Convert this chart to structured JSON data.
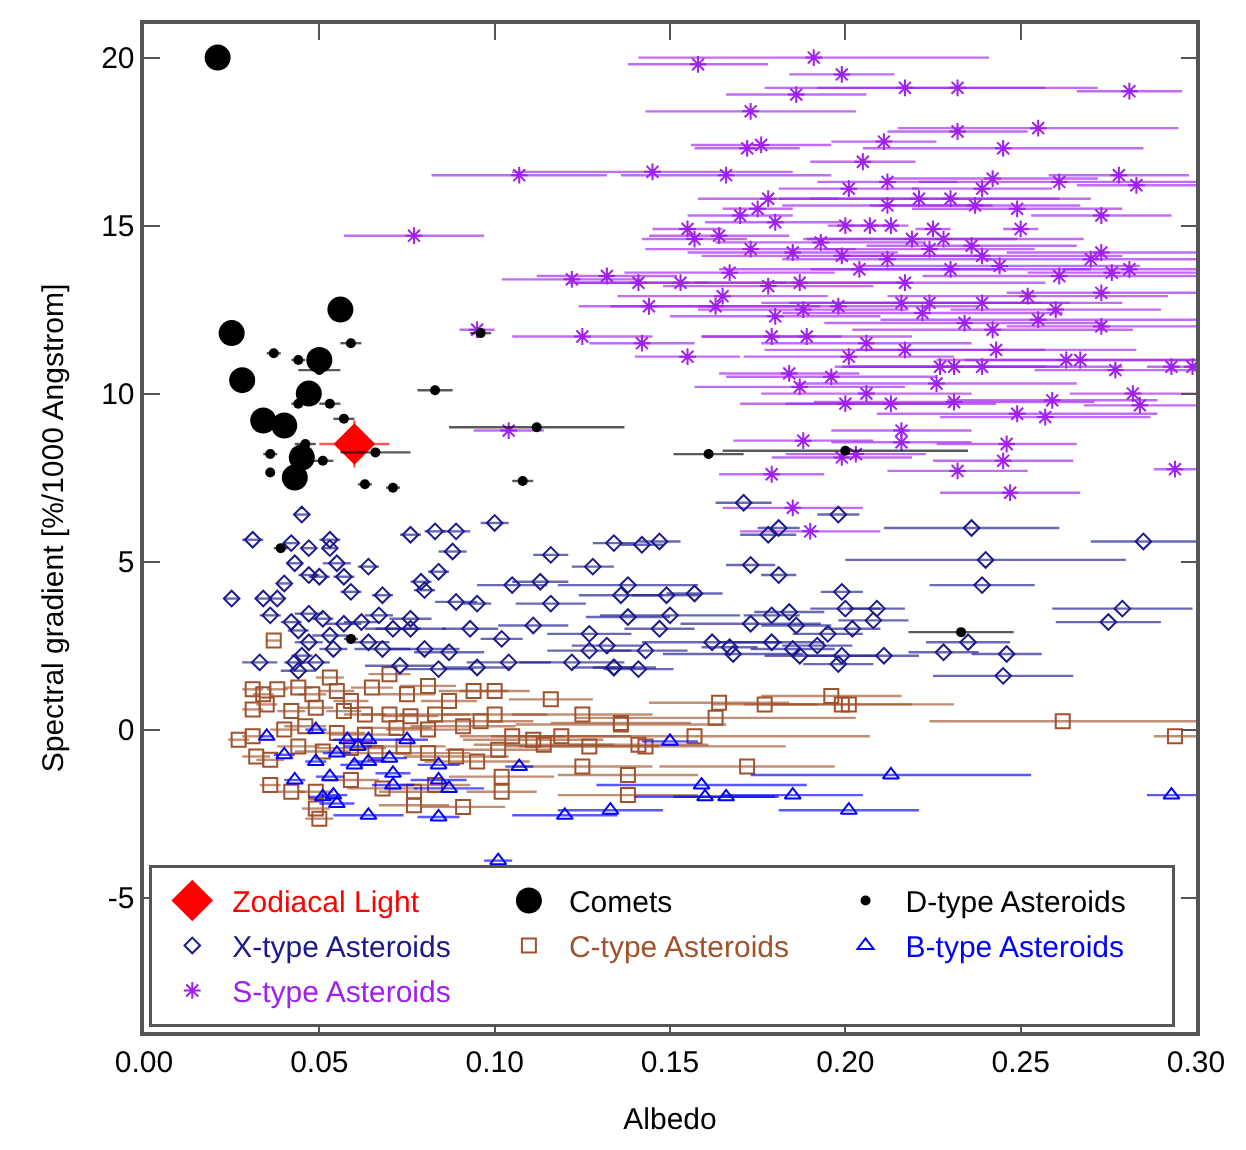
{
  "chart_data": {
    "type": "scatter",
    "xlabel": "Albedo",
    "ylabel": "Spectral gradient [%/1000 Angstrom]",
    "xlim": [
      0,
      0.3
    ],
    "ylim": [
      -9,
      21
    ],
    "xticks": [
      {
        "value": 0,
        "label": "0.00"
      },
      {
        "value": 0.05,
        "label": "0.05"
      },
      {
        "value": 0.1,
        "label": "0.10"
      },
      {
        "value": 0.15,
        "label": "0.15"
      },
      {
        "value": 0.2,
        "label": "0.20"
      },
      {
        "value": 0.25,
        "label": "0.25"
      },
      {
        "value": 0.3,
        "label": "0.30"
      }
    ],
    "yticks": [
      -5,
      0,
      5,
      10,
      15,
      20
    ],
    "grid": false,
    "legend": "bottom",
    "series": [
      {
        "name": "Zodiacal Light",
        "color": "#ff0000",
        "marker": "diamond",
        "x": [
          0.06
        ],
        "values": [
          8.5
        ],
        "xerrors": [
          0.01
        ],
        "errors": [
          0.7
        ]
      },
      {
        "name": "Comets",
        "color": "#000000",
        "marker": "circle",
        "x": [
          0.021,
          0.025,
          0.028,
          0.034,
          0.04,
          0.045,
          0.043,
          0.047,
          0.05,
          0.056
        ],
        "values": [
          20.0,
          11.8,
          10.4,
          9.2,
          9.05,
          8.1,
          7.5,
          10.0,
          11.0,
          12.5
        ]
      },
      {
        "name": "D-type Asteroids",
        "color": "#000000",
        "marker": "circle",
        "x": [
          0.037,
          0.044,
          0.044,
          0.053,
          0.05,
          0.059,
          0.036,
          0.036,
          0.046,
          0.051,
          0.057,
          0.066,
          0.063,
          0.071,
          0.083,
          0.096,
          0.112,
          0.108,
          0.039,
          0.059,
          0.161,
          0.2,
          0.233
        ],
        "values": [
          11.2,
          11.0,
          9.7,
          9.7,
          10.7,
          11.5,
          8.2,
          7.65,
          8.5,
          8.0,
          9.25,
          8.25,
          7.3,
          7.2,
          10.1,
          11.8,
          9.0,
          7.4,
          5.4,
          2.7,
          8.2,
          8.3,
          2.9
        ],
        "xerrors": [
          0.002,
          0.002,
          0.002,
          0.003,
          0.006,
          0.003,
          0.002,
          0.001,
          0.003,
          0.003,
          0.003,
          0.01,
          0.002,
          0.002,
          0.005,
          0.003,
          0.025,
          0.003,
          0.002,
          0.002,
          0.01,
          0.035,
          0.015
        ]
      },
      {
        "name": "X-type Asteroids",
        "color": "#1a1a8c",
        "marker": "diamond",
        "x": [
          0.031,
          0.045,
          0.025,
          0.034,
          0.038,
          0.042,
          0.047,
          0.053,
          0.053,
          0.04,
          0.043,
          0.047,
          0.05,
          0.055,
          0.057,
          0.064,
          0.059,
          0.068,
          0.076,
          0.083,
          0.089,
          0.088,
          0.1,
          0.084,
          0.079,
          0.08,
          0.089,
          0.095,
          0.105,
          0.113,
          0.116,
          0.116,
          0.128,
          0.134,
          0.036,
          0.042,
          0.047,
          0.051,
          0.057,
          0.062,
          0.067,
          0.076,
          0.071,
          0.076,
          0.093,
          0.102,
          0.111,
          0.127,
          0.044,
          0.047,
          0.053,
          0.054,
          0.045,
          0.043,
          0.049,
          0.064,
          0.068,
          0.08,
          0.087,
          0.073,
          0.084,
          0.095,
          0.104,
          0.122,
          0.033,
          0.044,
          0.127,
          0.134,
          0.138,
          0.136,
          0.171,
          0.198,
          0.236,
          0.181,
          0.178,
          0.147,
          0.142,
          0.285,
          0.24,
          0.173,
          0.181,
          0.239,
          0.138,
          0.149,
          0.157,
          0.199,
          0.2,
          0.209,
          0.279,
          0.275,
          0.15,
          0.147,
          0.173,
          0.179,
          0.184,
          0.186,
          0.202,
          0.208,
          0.195,
          0.235,
          0.162,
          0.179,
          0.192,
          0.167,
          0.132,
          0.143,
          0.168,
          0.185,
          0.187,
          0.199,
          0.211,
          0.228,
          0.246,
          0.198,
          0.134,
          0.141,
          0.245
        ],
        "values": [
          5.65,
          6.4,
          3.9,
          3.9,
          3.9,
          5.55,
          5.4,
          5.65,
          5.4,
          4.35,
          4.95,
          4.6,
          4.55,
          4.95,
          4.55,
          4.85,
          4.1,
          4.0,
          5.8,
          5.9,
          5.9,
          5.3,
          6.15,
          4.7,
          4.4,
          4.15,
          3.8,
          3.75,
          4.3,
          4.4,
          3.75,
          5.2,
          4.85,
          5.55,
          3.4,
          3.2,
          3.45,
          3.3,
          3.15,
          3.2,
          3.4,
          3.3,
          3.0,
          3.0,
          3.0,
          2.7,
          3.1,
          2.85,
          2.95,
          2.6,
          2.8,
          2.4,
          2.2,
          2.0,
          2.0,
          2.6,
          2.4,
          2.4,
          2.3,
          1.9,
          1.8,
          1.85,
          2.0,
          2.0,
          2.0,
          1.75,
          2.35,
          1.85,
          3.35,
          4.0,
          6.75,
          6.4,
          6.0,
          6.0,
          5.8,
          5.6,
          5.5,
          5.6,
          5.05,
          4.9,
          4.6,
          4.3,
          4.3,
          4.0,
          4.05,
          4.1,
          3.6,
          3.6,
          3.6,
          3.2,
          3.4,
          3.0,
          3.15,
          3.4,
          3.5,
          3.1,
          3.0,
          3.25,
          2.85,
          2.6,
          2.6,
          2.6,
          2.5,
          2.45,
          2.5,
          2.35,
          2.25,
          2.4,
          2.2,
          2.2,
          2.2,
          2.3,
          2.25,
          1.95,
          1.85,
          1.8,
          1.6
        ],
        "xerrors": [
          0.003,
          0.002,
          0.002,
          0.002,
          0.002,
          0.002,
          0.002,
          0.003,
          0.002,
          0.002,
          0.002,
          0.003,
          0.003,
          0.004,
          0.003,
          0.003,
          0.003,
          0.003,
          0.003,
          0.003,
          0.004,
          0.004,
          0.004,
          0.003,
          0.003,
          0.003,
          0.006,
          0.004,
          0.01,
          0.008,
          0.01,
          0.005,
          0.006,
          0.006,
          0.003,
          0.003,
          0.004,
          0.003,
          0.005,
          0.005,
          0.004,
          0.006,
          0.008,
          0.01,
          0.008,
          0.006,
          0.01,
          0.012,
          0.003,
          0.004,
          0.005,
          0.004,
          0.003,
          0.003,
          0.004,
          0.006,
          0.008,
          0.01,
          0.01,
          0.01,
          0.01,
          0.01,
          0.012,
          0.015,
          0.005,
          0.005,
          0.012,
          0.012,
          0.012,
          0.012,
          0.008,
          0.006,
          0.025,
          0.006,
          0.008,
          0.006,
          0.006,
          0.015,
          0.04,
          0.007,
          0.005,
          0.015,
          0.02,
          0.01,
          0.008,
          0.006,
          0.01,
          0.008,
          0.02,
          0.015,
          0.02,
          0.01,
          0.02,
          0.008,
          0.01,
          0.01,
          0.008,
          0.01,
          0.01,
          0.012,
          0.02,
          0.015,
          0.01,
          0.008,
          0.01,
          0.012,
          0.02,
          0.012,
          0.01,
          0.01,
          0.01,
          0.01,
          0.01,
          0.01,
          0.006,
          0.01,
          0.02
        ]
      },
      {
        "name": "C-type Asteroids",
        "color": "#a0522d",
        "marker": "square",
        "x": [
          0.037,
          0.031,
          0.034,
          0.038,
          0.031,
          0.035,
          0.044,
          0.048,
          0.053,
          0.055,
          0.059,
          0.065,
          0.07,
          0.075,
          0.081,
          0.087,
          0.094,
          0.1,
          0.116,
          0.042,
          0.049,
          0.057,
          0.063,
          0.07,
          0.076,
          0.083,
          0.027,
          0.031,
          0.04,
          0.046,
          0.055,
          0.063,
          0.072,
          0.081,
          0.091,
          0.096,
          0.1,
          0.105,
          0.125,
          0.136,
          0.032,
          0.036,
          0.044,
          0.051,
          0.059,
          0.066,
          0.074,
          0.081,
          0.089,
          0.095,
          0.101,
          0.111,
          0.114,
          0.119,
          0.127,
          0.141,
          0.125,
          0.102,
          0.036,
          0.042,
          0.049,
          0.059,
          0.068,
          0.077,
          0.083,
          0.091,
          0.077,
          0.049,
          0.05,
          0.102,
          0.138,
          0.164,
          0.177,
          0.196,
          0.199,
          0.201,
          0.136,
          0.163,
          0.262,
          0.294,
          0.157,
          0.143,
          0.172,
          0.138
        ],
        "values": [
          2.65,
          1.2,
          1.05,
          1.2,
          0.6,
          0.75,
          1.25,
          1.05,
          1.55,
          1.15,
          0.85,
          1.25,
          1.65,
          1.05,
          1.3,
          0.85,
          1.15,
          1.15,
          0.9,
          0.55,
          0.65,
          0.55,
          0.45,
          0.45,
          0.4,
          0.45,
          -0.3,
          -0.2,
          0.0,
          0.1,
          -0.1,
          -0.15,
          0.05,
          0.0,
          0.1,
          0.25,
          0.45,
          -0.2,
          0.45,
          0.2,
          -0.8,
          -0.9,
          -0.5,
          -0.65,
          -0.55,
          -0.7,
          -0.5,
          -0.7,
          -0.8,
          -0.95,
          -0.6,
          -0.3,
          -0.45,
          -0.2,
          -0.5,
          -0.45,
          -1.1,
          -1.4,
          -1.65,
          -1.85,
          -1.85,
          -1.5,
          -1.75,
          -1.85,
          -1.65,
          -2.3,
          -2.25,
          -2.35,
          -2.65,
          -1.85,
          -1.35,
          0.8,
          0.75,
          1.0,
          0.75,
          0.75,
          0.15,
          0.35,
          0.25,
          -0.2,
          -0.2,
          -0.5,
          -1.1,
          -1.95
        ],
        "xerrors": [
          0.002,
          0.003,
          0.003,
          0.003,
          0.003,
          0.003,
          0.004,
          0.004,
          0.004,
          0.005,
          0.005,
          0.006,
          0.006,
          0.008,
          0.008,
          0.008,
          0.01,
          0.01,
          0.012,
          0.004,
          0.005,
          0.005,
          0.006,
          0.008,
          0.008,
          0.01,
          0.003,
          0.003,
          0.004,
          0.006,
          0.008,
          0.01,
          0.01,
          0.012,
          0.015,
          0.015,
          0.015,
          0.015,
          0.02,
          0.02,
          0.004,
          0.004,
          0.006,
          0.008,
          0.01,
          0.01,
          0.012,
          0.012,
          0.015,
          0.015,
          0.015,
          0.02,
          0.02,
          0.02,
          0.02,
          0.02,
          0.02,
          0.015,
          0.003,
          0.004,
          0.005,
          0.008,
          0.01,
          0.01,
          0.01,
          0.012,
          0.01,
          0.004,
          0.004,
          0.01,
          0.02,
          0.02,
          0.015,
          0.02,
          0.02,
          0.03,
          0.03,
          0.04,
          0.038,
          0.006,
          0.05,
          0.04,
          0.025,
          0.02
        ]
      },
      {
        "name": "B-type Asteroids",
        "color": "#0000ff",
        "marker": "triangle",
        "x": [
          0.035,
          0.049,
          0.04,
          0.049,
          0.055,
          0.058,
          0.061,
          0.064,
          0.07,
          0.075,
          0.06,
          0.064,
          0.043,
          0.053,
          0.071,
          0.071,
          0.084,
          0.084,
          0.087,
          0.107,
          0.051,
          0.054,
          0.055,
          0.064,
          0.084,
          0.101,
          0.12,
          0.133,
          0.15,
          0.213,
          0.159,
          0.16,
          0.166,
          0.185,
          0.201,
          0.293
        ],
        "values": [
          -0.2,
          0.0,
          -0.75,
          -0.95,
          -0.7,
          -0.3,
          -0.5,
          -0.3,
          -0.85,
          -0.3,
          -1.05,
          -0.95,
          -1.5,
          -1.4,
          -1.3,
          -1.65,
          -1.05,
          -1.5,
          -1.75,
          -1.1,
          -2.0,
          -1.95,
          -2.2,
          -2.55,
          -2.6,
          -3.9,
          -2.55,
          -2.4,
          -0.35,
          -1.35,
          -1.65,
          -2.0,
          -2.0,
          -1.95,
          -2.4,
          -1.95
        ],
        "xerrors": [
          0.002,
          0.003,
          0.003,
          0.003,
          0.004,
          0.004,
          0.004,
          0.005,
          0.005,
          0.006,
          0.004,
          0.005,
          0.003,
          0.004,
          0.005,
          0.006,
          0.006,
          0.008,
          0.01,
          0.004,
          0.004,
          0.004,
          0.005,
          0.01,
          0.006,
          0.004,
          0.015,
          0.015,
          0.008,
          0.04,
          0.03,
          0.02,
          0.015,
          0.02,
          0.02,
          0.007
        ]
      },
      {
        "name": "S-type Asteroids",
        "color": "#a020f0",
        "marker": "cross",
        "x": [
          0.158,
          0.191,
          0.199,
          0.186,
          0.217,
          0.232,
          0.281,
          0.173,
          0.232,
          0.255,
          0.176,
          0.172,
          0.211,
          0.245,
          0.205,
          0.145,
          0.166,
          0.201,
          0.212,
          0.239,
          0.242,
          0.261,
          0.278,
          0.283,
          0.178,
          0.17,
          0.175,
          0.18,
          0.212,
          0.221,
          0.23,
          0.237,
          0.249,
          0.273,
          0.155,
          0.157,
          0.164,
          0.2,
          0.207,
          0.213,
          0.225,
          0.25,
          0.193,
          0.219,
          0.224,
          0.228,
          0.236,
          0.173,
          0.185,
          0.199,
          0.212,
          0.239,
          0.27,
          0.273,
          0.132,
          0.141,
          0.153,
          0.167,
          0.178,
          0.187,
          0.204,
          0.217,
          0.23,
          0.244,
          0.261,
          0.276,
          0.281,
          0.144,
          0.165,
          0.188,
          0.198,
          0.216,
          0.224,
          0.239,
          0.252,
          0.273,
          0.26,
          0.163,
          0.18,
          0.222,
          0.234,
          0.242,
          0.255,
          0.273,
          0.142,
          0.155,
          0.179,
          0.189,
          0.201,
          0.206,
          0.217,
          0.227,
          0.231,
          0.239,
          0.243,
          0.263,
          0.267,
          0.277,
          0.293,
          0.299,
          0.184,
          0.187,
          0.196,
          0.206,
          0.213,
          0.2,
          0.226,
          0.231,
          0.249,
          0.257,
          0.259,
          0.282,
          0.284,
          0.188,
          0.216,
          0.216,
          0.199,
          0.203,
          0.246,
          0.245,
          0.179,
          0.232,
          0.294,
          0.185,
          0.247,
          0.19,
          0.107,
          0.077,
          0.095,
          0.122,
          0.125,
          0.104
        ],
        "values": [
          19.8,
          20.0,
          19.5,
          18.9,
          19.1,
          19.1,
          19.0,
          18.4,
          17.8,
          17.9,
          17.4,
          17.3,
          17.5,
          17.3,
          16.9,
          16.6,
          16.5,
          16.1,
          16.3,
          16.1,
          16.4,
          16.3,
          16.5,
          16.2,
          15.8,
          15.3,
          15.5,
          15.1,
          15.6,
          15.8,
          15.8,
          15.6,
          15.5,
          15.3,
          14.9,
          14.6,
          14.7,
          15.0,
          15.0,
          15.0,
          14.9,
          14.9,
          14.5,
          14.6,
          14.3,
          14.6,
          14.4,
          14.3,
          14.2,
          14.1,
          14.0,
          14.1,
          14.0,
          14.2,
          13.5,
          13.3,
          13.3,
          13.6,
          13.2,
          13.3,
          13.7,
          13.3,
          13.7,
          13.8,
          13.5,
          13.6,
          13.7,
          12.6,
          12.9,
          12.5,
          12.6,
          12.7,
          12.7,
          12.7,
          12.9,
          13.0,
          12.5,
          12.6,
          12.3,
          12.4,
          12.1,
          11.9,
          12.2,
          12.0,
          11.5,
          11.1,
          11.7,
          11.7,
          11.1,
          11.5,
          11.3,
          10.8,
          10.8,
          10.8,
          11.3,
          11.0,
          11.0,
          10.7,
          10.8,
          10.8,
          10.6,
          10.2,
          10.5,
          10.0,
          9.7,
          9.7,
          10.3,
          9.75,
          9.4,
          9.3,
          9.8,
          10.0,
          9.65,
          8.6,
          8.9,
          8.55,
          8.1,
          8.2,
          8.5,
          8.0,
          7.6,
          7.7,
          7.75,
          6.6,
          7.05,
          5.9,
          16.5,
          14.7,
          11.9,
          13.4,
          11.7,
          8.9
        ],
        "xerrors": [
          0.02,
          0.05,
          0.015,
          0.02,
          0.04,
          0.04,
          0.015,
          0.03,
          0.02,
          0.04,
          0.02,
          0.015,
          0.015,
          0.04,
          0.015,
          0.04,
          0.03,
          0.02,
          0.02,
          0.02,
          0.03,
          0.04,
          0.02,
          0.017,
          0.02,
          0.015,
          0.01,
          0.02,
          0.03,
          0.04,
          0.04,
          0.03,
          0.03,
          0.02,
          0.01,
          0.015,
          0.02,
          0.005,
          0.005,
          0.005,
          0.005,
          0.005,
          0.03,
          0.03,
          0.03,
          0.04,
          0.03,
          0.03,
          0.03,
          0.04,
          0.03,
          0.04,
          0.03,
          0.027,
          0.02,
          0.02,
          0.03,
          0.03,
          0.03,
          0.03,
          0.04,
          0.04,
          0.04,
          0.04,
          0.039,
          0.024,
          0.019,
          0.02,
          0.03,
          0.03,
          0.04,
          0.04,
          0.04,
          0.04,
          0.04,
          0.027,
          0.03,
          0.03,
          0.03,
          0.04,
          0.04,
          0.04,
          0.045,
          0.027,
          0.015,
          0.015,
          0.02,
          0.03,
          0.03,
          0.03,
          0.04,
          0.03,
          0.03,
          0.04,
          0.04,
          0.037,
          0.033,
          0.023,
          0.007,
          0.001,
          0.02,
          0.03,
          0.03,
          0.03,
          0.03,
          0.03,
          0.04,
          0.04,
          0.04,
          0.03,
          0.03,
          0.018,
          0.016,
          0.02,
          0.02,
          0.02,
          0.02,
          0.02,
          0.02,
          0.02,
          0.015,
          0.02,
          0.006,
          0.02,
          0.02,
          0.02,
          0.025,
          0.02,
          0.005,
          0.02,
          0.02,
          0.01
        ]
      }
    ]
  }
}
